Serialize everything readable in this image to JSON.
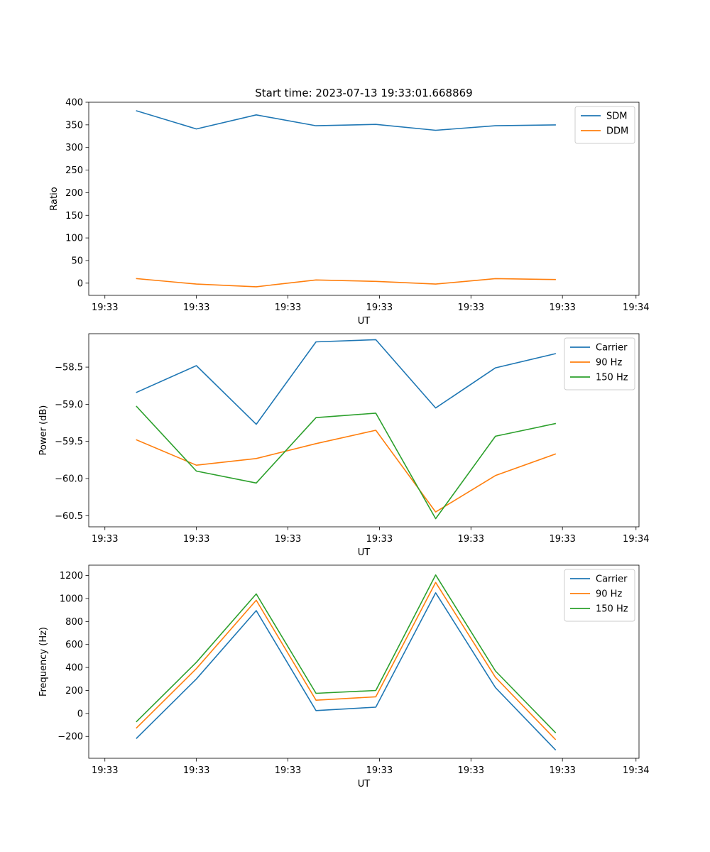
{
  "figure": {
    "title": "Start time: 2023-07-13 19:33:01.668869"
  },
  "colors": {
    "blue": "#1f77b4",
    "orange": "#ff7f0e",
    "green": "#2ca02c"
  },
  "chart_data": [
    {
      "type": "line",
      "title": "Start time: 2023-07-13 19:33:01.668869",
      "xlabel": "UT",
      "ylabel": "Ratio",
      "x": [
        1,
        2,
        3,
        4,
        5,
        6,
        7,
        8
      ],
      "xlim": [
        0.2,
        9.4
      ],
      "xticks": [
        0.47,
        2.0,
        3.53,
        5.06,
        6.59,
        8.12,
        9.35
      ],
      "xtick_labels": [
        "19:33",
        "19:33",
        "19:33",
        "19:33",
        "19:33",
        "19:33",
        "19:34"
      ],
      "ylim": [
        -27,
        400
      ],
      "yticks": [
        0,
        50,
        100,
        150,
        200,
        250,
        300,
        350,
        400
      ],
      "ytick_labels": [
        "0",
        "50",
        "100",
        "150",
        "200",
        "250",
        "300",
        "350",
        "400"
      ],
      "legend": "top-right",
      "grid": false,
      "series": [
        {
          "name": "SDM",
          "color": "#1f77b4",
          "values": [
            381,
            341,
            372,
            348,
            351,
            338,
            348,
            350
          ]
        },
        {
          "name": "DDM",
          "color": "#ff7f0e",
          "values": [
            10,
            -2,
            -8,
            7,
            4,
            -2,
            10,
            8
          ]
        }
      ]
    },
    {
      "type": "line",
      "title": "",
      "xlabel": "UT",
      "ylabel": "Power (dB)",
      "x": [
        1,
        2,
        3,
        4,
        5,
        6,
        7,
        8
      ],
      "xlim": [
        0.2,
        9.4
      ],
      "xticks": [
        0.47,
        2.0,
        3.53,
        5.06,
        6.59,
        8.12,
        9.35
      ],
      "xtick_labels": [
        "19:33",
        "19:33",
        "19:33",
        "19:33",
        "19:33",
        "19:33",
        "19:34"
      ],
      "ylim": [
        -60.65,
        -58.05
      ],
      "yticks": [
        -60.5,
        -60.0,
        -59.5,
        -59.0,
        -58.5
      ],
      "ytick_labels": [
        "−60.5",
        "−60.0",
        "−59.5",
        "−59.0",
        "−58.5"
      ],
      "legend": "top-right",
      "grid": false,
      "series": [
        {
          "name": "Carrier",
          "color": "#1f77b4",
          "values": [
            -58.84,
            -58.48,
            -59.27,
            -58.16,
            -58.13,
            -59.05,
            -58.51,
            -58.32
          ]
        },
        {
          "name": "90 Hz",
          "color": "#ff7f0e",
          "values": [
            -59.48,
            -59.82,
            -59.73,
            -59.53,
            -59.35,
            -60.45,
            -59.96,
            -59.67
          ]
        },
        {
          "name": "150 Hz",
          "color": "#2ca02c",
          "values": [
            -59.03,
            -59.9,
            -60.06,
            -59.18,
            -59.12,
            -60.54,
            -59.43,
            -59.26
          ]
        }
      ]
    },
    {
      "type": "line",
      "title": "",
      "xlabel": "UT",
      "ylabel": "Frequency (Hz)",
      "x": [
        1,
        2,
        3,
        4,
        5,
        6,
        7,
        8
      ],
      "xlim": [
        0.2,
        9.4
      ],
      "xticks": [
        0.47,
        2.0,
        3.53,
        5.06,
        6.59,
        8.12,
        9.35
      ],
      "xtick_labels": [
        "19:33",
        "19:33",
        "19:33",
        "19:33",
        "19:33",
        "19:33",
        "19:34"
      ],
      "ylim": [
        -390,
        1290
      ],
      "yticks": [
        -200,
        0,
        200,
        400,
        600,
        800,
        1000,
        1200
      ],
      "ytick_labels": [
        "−200",
        "0",
        "200",
        "400",
        "600",
        "800",
        "1000",
        "1200"
      ],
      "legend": "top-right",
      "grid": false,
      "series": [
        {
          "name": "Carrier",
          "color": "#1f77b4",
          "values": [
            -215,
            300,
            895,
            25,
            55,
            1050,
            225,
            -315
          ]
        },
        {
          "name": "90 Hz",
          "color": "#ff7f0e",
          "values": [
            -125,
            390,
            985,
            115,
            145,
            1140,
            315,
            -225
          ]
        },
        {
          "name": "150 Hz",
          "color": "#2ca02c",
          "values": [
            -70,
            445,
            1040,
            175,
            200,
            1205,
            370,
            -165
          ]
        }
      ]
    }
  ]
}
